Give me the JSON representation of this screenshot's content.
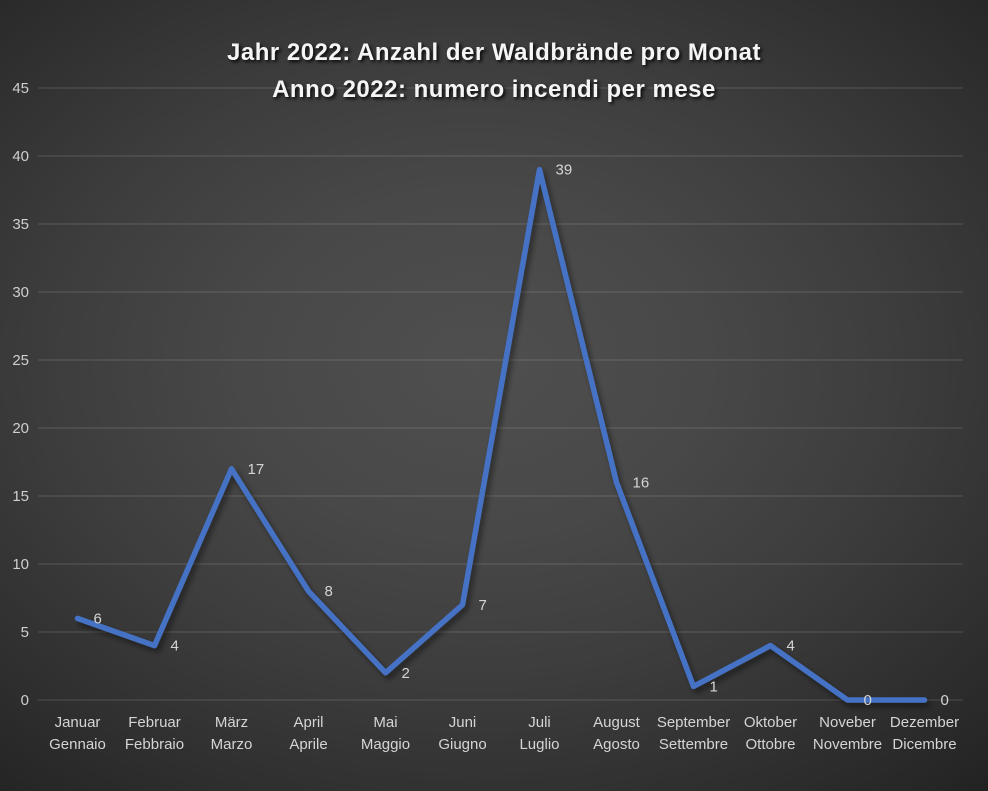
{
  "title": {
    "line1": "Jahr 2022: Anzahl der Waldbrände pro Monat",
    "line2": "Anno 2022: numero incendi per mese"
  },
  "chart_data": {
    "type": "line",
    "title": "Jahr 2022: Anzahl der Waldbrände pro Monat / Anno 2022: numero incendi per mese",
    "categories": [
      {
        "de": "Januar",
        "it": "Gennaio"
      },
      {
        "de": "Februar",
        "it": "Febbraio"
      },
      {
        "de": "März",
        "it": "Marzo"
      },
      {
        "de": "April",
        "it": "Aprile"
      },
      {
        "de": "Mai",
        "it": "Maggio"
      },
      {
        "de": "Juni",
        "it": "Giugno"
      },
      {
        "de": "Juli",
        "it": "Luglio"
      },
      {
        "de": "August",
        "it": "Agosto"
      },
      {
        "de": "September",
        "it": "Settembre"
      },
      {
        "de": "Oktober",
        "it": "Ottobre"
      },
      {
        "de": "Noveber",
        "it": "Novembre"
      },
      {
        "de": "Dezember",
        "it": "Dicembre"
      }
    ],
    "values": [
      6,
      4,
      17,
      8,
      2,
      7,
      39,
      16,
      1,
      4,
      0,
      0
    ],
    "data_labels_shown": true,
    "y_axis": {
      "min": 0,
      "max": 45,
      "step": 5,
      "ticks": [
        0,
        5,
        10,
        15,
        20,
        25,
        30,
        35,
        40,
        45
      ]
    },
    "xlabel": "",
    "ylabel": "",
    "grid": true,
    "legend": "none",
    "line_color": "#4472C4",
    "text_color": "#d5d5d5",
    "tick_color": "#cfcfcf",
    "title_color": "#f5f5f5"
  }
}
